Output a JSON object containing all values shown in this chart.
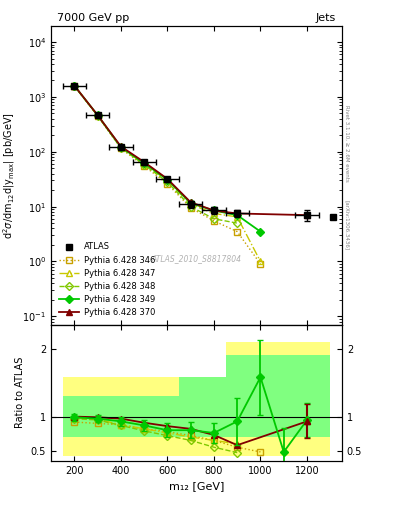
{
  "title_left": "7000 GeV pp",
  "title_right": "Jets",
  "right_label": "Rivet 3.1.10, ≥ 2.6M events",
  "arxiv_label": "[arXiv:1306.3436]",
  "watermark": "ATLAS_2010_S8817804",
  "ylabel_main": "d²σ/dm₁₂d|y₁₂⁼¹| [pb/GeV]",
  "ylabel_ratio": "Ratio to ATLAS",
  "xlabel": "m₁₂ [GeV]",
  "x_values": [
    200,
    300,
    400,
    500,
    600,
    700,
    800,
    900,
    1000,
    1100,
    1200
  ],
  "atlas_x": [
    200,
    300,
    400,
    500,
    600,
    700,
    800,
    900,
    1200
  ],
  "atlas_y": [
    1600,
    460,
    120,
    65,
    32,
    11,
    8.5,
    7.5,
    7.0
  ],
  "atlas_ye": [
    80,
    30,
    10,
    5,
    3,
    1.5,
    1.2,
    1.0,
    1.5
  ],
  "p346_y": [
    1580,
    450,
    115,
    55,
    26,
    9.5,
    5.5,
    3.5,
    0.9,
    null,
    null
  ],
  "p347_y": [
    1600,
    460,
    120,
    60,
    30,
    11,
    7.5,
    6.5,
    1.0,
    null,
    null
  ],
  "p348_y": [
    1590,
    455,
    118,
    58,
    28,
    10,
    6.0,
    5.0,
    null,
    null,
    null
  ],
  "p349_y": [
    1600,
    465,
    122,
    62,
    31,
    11.5,
    8.5,
    7.0,
    3.5,
    null,
    null
  ],
  "p370_y": [
    1610,
    465,
    125,
    65,
    32,
    12,
    8.5,
    7.5,
    null,
    null,
    7.0
  ],
  "ratio_346_y": [
    0.92,
    0.9,
    0.88,
    0.82,
    0.78,
    0.72,
    0.65,
    0.55,
    0.48,
    null,
    null
  ],
  "ratio_347_y": [
    0.98,
    0.96,
    0.88,
    0.82,
    0.76,
    0.7,
    0.65,
    0.6,
    null,
    null,
    null
  ],
  "ratio_348_y": [
    0.97,
    0.95,
    0.87,
    0.79,
    0.72,
    0.65,
    0.55,
    0.47,
    null,
    null,
    null
  ],
  "ratio_349_y": [
    0.99,
    0.97,
    0.93,
    0.87,
    0.8,
    0.8,
    0.76,
    0.93,
    1.58,
    0.48,
    0.95
  ],
  "ratio_349_ye": [
    0.05,
    0.05,
    0.07,
    0.08,
    0.1,
    0.12,
    0.15,
    0.35,
    0.55,
    0.35,
    0.25
  ],
  "ratio_370_y": [
    1.0,
    0.99,
    0.97,
    0.91,
    0.86,
    0.82,
    0.73,
    0.58,
    null,
    null,
    0.93
  ],
  "ratio_370_ye_last": 0.25,
  "bin_edges": [
    150,
    250,
    350,
    450,
    550,
    650,
    750,
    850,
    950,
    1050,
    1150,
    1300
  ],
  "yellow_lo": [
    0.42,
    0.42,
    0.42,
    0.42,
    0.42,
    0.42,
    0.42,
    0.42,
    0.42,
    0.42,
    0.42
  ],
  "yellow_hi": [
    1.58,
    1.58,
    1.58,
    1.58,
    1.58,
    1.58,
    1.58,
    2.1,
    2.1,
    2.1,
    2.1
  ],
  "green_lo": [
    0.7,
    0.7,
    0.7,
    0.7,
    0.7,
    0.7,
    0.7,
    0.7,
    0.7,
    0.7,
    0.7
  ],
  "green_hi": [
    1.3,
    1.3,
    1.3,
    1.3,
    1.3,
    1.58,
    1.58,
    1.9,
    1.9,
    1.9,
    1.9
  ],
  "color_346": "#c8a000",
  "color_347": "#c8c800",
  "color_348": "#80c800",
  "color_349": "#00c800",
  "color_370": "#800000",
  "color_atlas": "#000000",
  "color_yellow": "#ffff80",
  "color_green": "#80ff80",
  "xw": 50
}
